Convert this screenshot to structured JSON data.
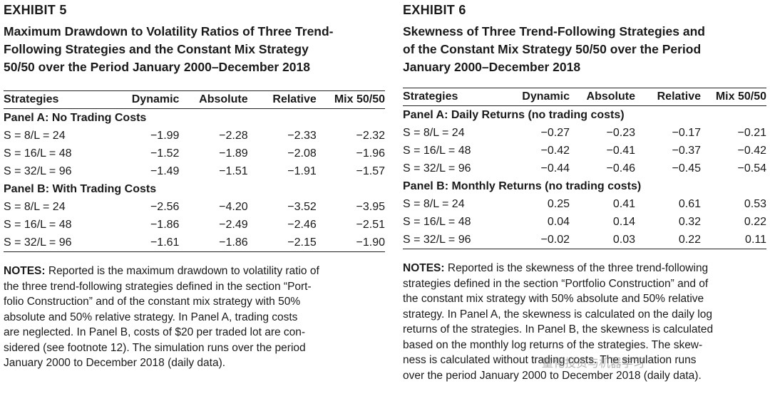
{
  "exhibit5": {
    "label": "EXHIBIT 5",
    "title_lines": [
      "Maximum Drawdown to Volatility Ratios of Three Trend-",
      "Following Strategies and the Constant Mix Strategy",
      "50/50 over the Period January 2000–December 2018"
    ],
    "headers": [
      "Strategies",
      "Dynamic",
      "Absolute",
      "Relative",
      "Mix 50/50"
    ],
    "panel_a": {
      "title": "Panel A: No Trading Costs",
      "rows": [
        [
          "S = 8/L = 24",
          "−1.99",
          "−2.28",
          "−2.33",
          "−2.32"
        ],
        [
          "S = 16/L = 48",
          "−1.52",
          "−1.89",
          "−2.08",
          "−1.96"
        ],
        [
          "S = 32/L = 96",
          "−1.49",
          "−1.51",
          "−1.91",
          "−1.57"
        ]
      ]
    },
    "panel_b": {
      "title": "Panel B: With Trading Costs",
      "rows": [
        [
          "S = 8/L = 24",
          "−2.56",
          "−4.20",
          "−3.52",
          "−3.95"
        ],
        [
          "S = 16/L = 48",
          "−1.86",
          "−2.49",
          "−2.46",
          "−2.51"
        ],
        [
          "S = 32/L = 96",
          "−1.61",
          "−1.86",
          "−2.15",
          "−1.90"
        ]
      ]
    },
    "notes_label": "NOTES:",
    "notes_lines": [
      " Reported is the maximum drawdown to volatility ratio of",
      "the three trend-following strategies defined in the section “Port-",
      "folio Construction” and of the constant mix strategy with 50%",
      "absolute and 50% relative strategy. In Panel A, trading costs",
      "are neglected. In Panel B, costs of $20 per traded lot are con-",
      "sidered (see footnote 12). The simulation runs over the period",
      "January 2000 to December 2018 (daily data)."
    ]
  },
  "exhibit6": {
    "label": "EXHIBIT 6",
    "title_lines": [
      "Skewness of Three Trend-Following Strategies and",
      "of the Constant Mix Strategy 50/50 over the Period",
      "January 2000–December 2018"
    ],
    "headers": [
      "Strategies",
      "Dynamic",
      "Absolute",
      "Relative",
      "Mix 50/50"
    ],
    "panel_a": {
      "title": "Panel A: Daily Returns (no trading costs)",
      "rows": [
        [
          "S = 8/L = 24",
          "−0.27",
          "−0.23",
          "−0.17",
          "−0.21"
        ],
        [
          "S = 16/L = 48",
          "−0.42",
          "−0.41",
          "−0.37",
          "−0.42"
        ],
        [
          "S = 32/L = 96",
          "−0.44",
          "−0.46",
          "−0.45",
          "−0.54"
        ]
      ]
    },
    "panel_b": {
      "title": "Panel B: Monthly Returns (no trading costs)",
      "rows": [
        [
          "S = 8/L = 24",
          "0.25",
          "0.41",
          "0.61",
          "0.53"
        ],
        [
          "S = 16/L = 48",
          "0.04",
          "0.14",
          "0.32",
          "0.22"
        ],
        [
          "S = 32/L = 96",
          "−0.02",
          "0.03",
          "0.22",
          "0.11"
        ]
      ]
    },
    "notes_label": "NOTES:",
    "notes_lines": [
      " Reported is the skewness of the three trend-following",
      "strategies defined in the section “Portfolio Construction” and of",
      "the constant mix strategy with 50% absolute and 50% relative",
      "strategy. In Panel A, the skewness is calculated on the daily log",
      "returns of the strategies. In Panel B, the skewness is calculated",
      "based on the monthly log returns of the strategies. The skew-",
      "ness is calculated without trading costs. The simulation runs",
      "over the period January 2000 to December 2018 (daily data)."
    ]
  },
  "watermark": "量化投资与机器学习"
}
